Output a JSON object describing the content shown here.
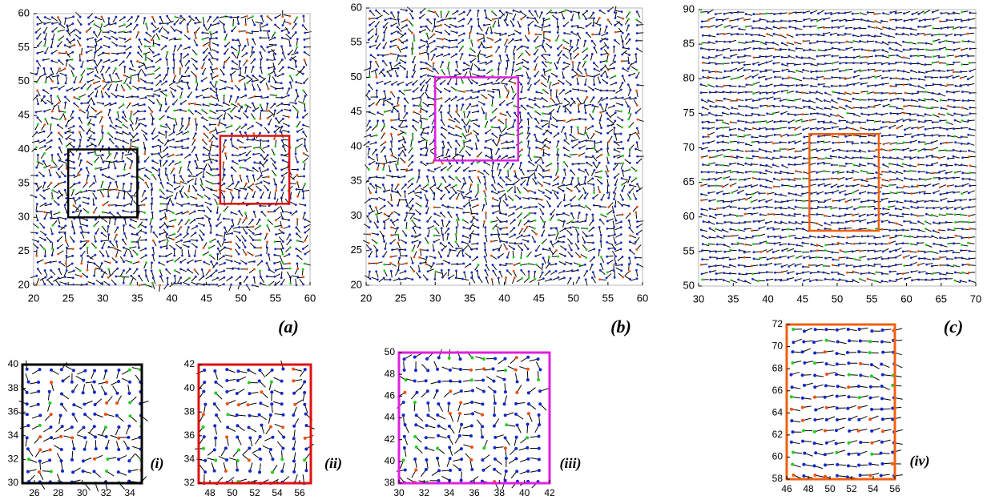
{
  "chart_data": [
    {
      "type": "quiver",
      "label": "(a)",
      "field_pattern": "swirl",
      "xlim": [
        20,
        60
      ],
      "ylim": [
        20,
        60
      ],
      "xticks": [
        20,
        25,
        30,
        35,
        40,
        45,
        50,
        55,
        60
      ],
      "yticks": [
        20,
        25,
        30,
        35,
        40,
        45,
        50,
        55,
        60
      ],
      "regions": [
        {
          "xlim": [
            25,
            35
          ],
          "ylim": [
            30,
            40
          ],
          "color": "#000000"
        },
        {
          "xlim": [
            47,
            57
          ],
          "ylim": [
            32,
            42
          ],
          "color": "#e01010"
        }
      ]
    },
    {
      "type": "quiver",
      "label": "(b)",
      "field_pattern": "swirl",
      "xlim": [
        20,
        60
      ],
      "ylim": [
        20,
        60
      ],
      "xticks": [
        20,
        25,
        30,
        35,
        40,
        45,
        50,
        55,
        60
      ],
      "yticks": [
        20,
        25,
        30,
        35,
        40,
        45,
        50,
        55,
        60
      ],
      "regions": [
        {
          "xlim": [
            30,
            42
          ],
          "ylim": [
            38,
            50
          ],
          "color": "#e020e0"
        }
      ]
    },
    {
      "type": "quiver",
      "label": "(c)",
      "field_pattern": "flow",
      "xlim": [
        30,
        70
      ],
      "ylim": [
        50,
        90
      ],
      "xticks": [
        30,
        35,
        40,
        45,
        50,
        55,
        60,
        65,
        70
      ],
      "yticks": [
        50,
        55,
        60,
        65,
        70,
        75,
        80,
        85,
        90
      ],
      "regions": [
        {
          "xlim": [
            46,
            56
          ],
          "ylim": [
            58,
            72
          ],
          "color": "#f06010"
        }
      ]
    },
    {
      "type": "quiver",
      "label": "(i)",
      "field_pattern": "swirl",
      "frame_color": "#000000",
      "xlim": [
        25,
        35
      ],
      "ylim": [
        30,
        40
      ],
      "xticks": [
        26,
        28,
        30,
        32,
        34
      ],
      "yticks": [
        30,
        32,
        34,
        36,
        38,
        40
      ]
    },
    {
      "type": "quiver",
      "label": "(ii)",
      "field_pattern": "swirl",
      "frame_color": "#e01010",
      "xlim": [
        47,
        57
      ],
      "ylim": [
        32,
        42
      ],
      "xticks": [
        48,
        50,
        52,
        54,
        56
      ],
      "yticks": [
        32,
        34,
        36,
        38,
        40,
        42
      ]
    },
    {
      "type": "quiver",
      "label": "(iii)",
      "field_pattern": "swirl",
      "frame_color": "#e020e0",
      "xlim": [
        30,
        42
      ],
      "ylim": [
        38,
        50
      ],
      "xticks": [
        30,
        32,
        34,
        36,
        38,
        40,
        42
      ],
      "yticks": [
        38,
        40,
        42,
        44,
        46,
        48,
        50
      ]
    },
    {
      "type": "quiver",
      "label": "(iv)",
      "field_pattern": "flow",
      "frame_color": "#f06010",
      "xlim": [
        46,
        56
      ],
      "ylim": [
        58,
        72
      ],
      "xticks": [
        46,
        48,
        50,
        52,
        54,
        56
      ],
      "yticks": [
        58,
        60,
        62,
        64,
        66,
        68,
        70,
        72
      ]
    }
  ]
}
